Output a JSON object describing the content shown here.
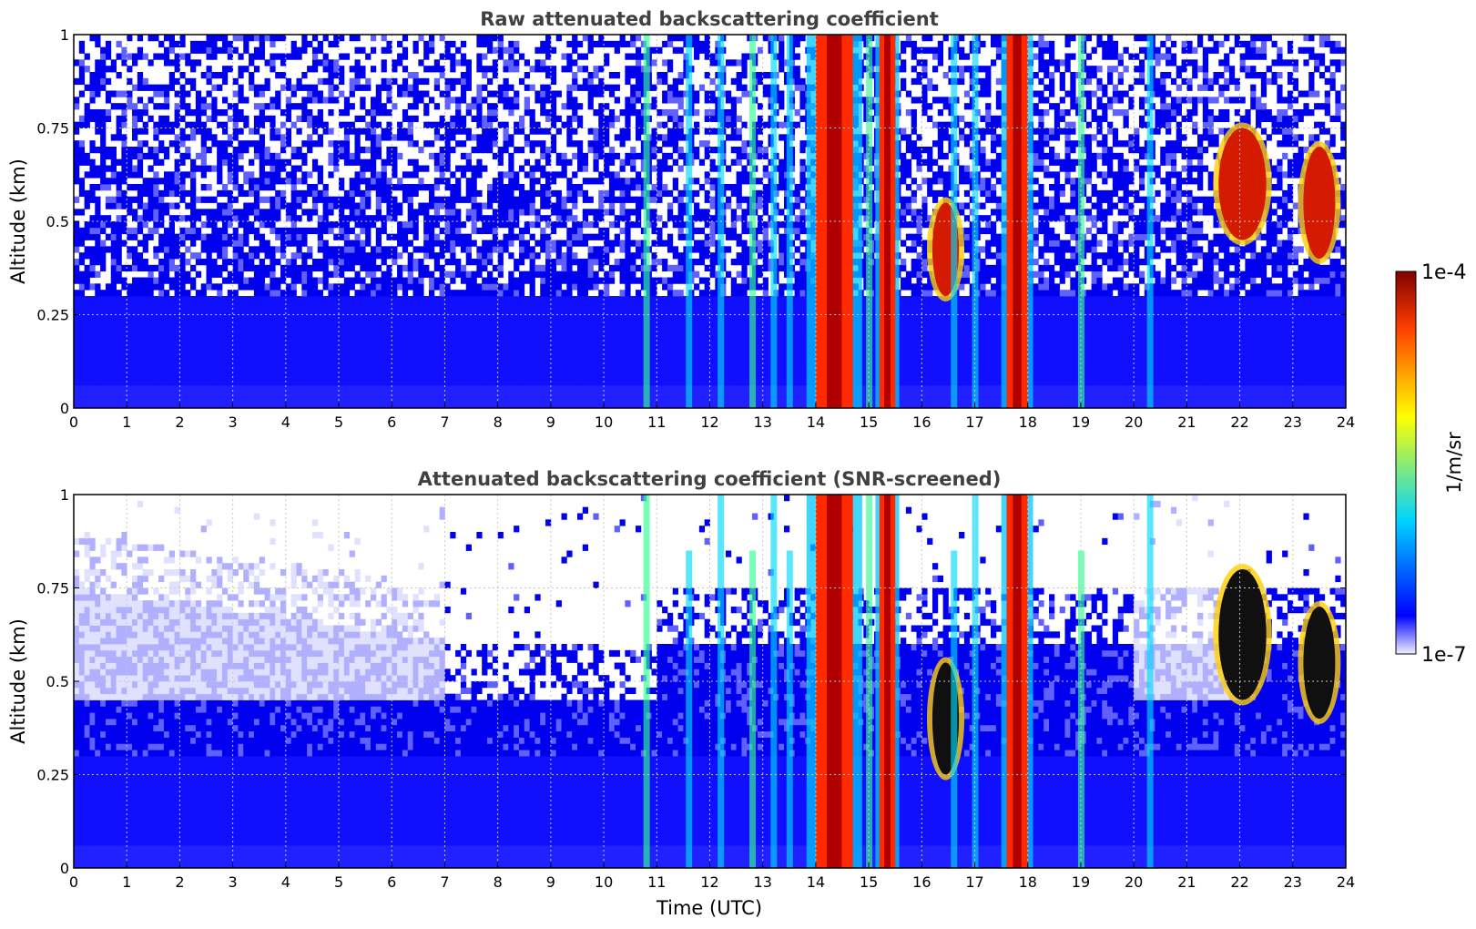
{
  "chart_data": [
    {
      "type": "heatmap",
      "title": "Raw attenuated backscattering coefficient",
      "xlabel": "",
      "ylabel": "Altitude (km)",
      "xlim": [
        0,
        24
      ],
      "ylim": [
        0,
        1
      ],
      "x_ticks": [
        "0",
        "1",
        "2",
        "3",
        "4",
        "5",
        "6",
        "7",
        "8",
        "9",
        "10",
        "11",
        "12",
        "13",
        "14",
        "15",
        "16",
        "17",
        "18",
        "19",
        "20",
        "21",
        "22",
        "23",
        "24"
      ],
      "y_ticks": [
        "0",
        "0.25",
        "0.5",
        "0.75",
        "1"
      ],
      "grid": true,
      "screened": false,
      "features": [
        {
          "name": "boundary-layer",
          "x": [
            0,
            24
          ],
          "y": [
            0,
            0.3
          ],
          "value": "1e-6"
        },
        {
          "name": "noise",
          "x": [
            0,
            24
          ],
          "y": [
            0.3,
            1
          ],
          "value": "1e-7"
        },
        {
          "name": "rain-band",
          "x": [
            14,
            14.7
          ],
          "y": [
            0,
            1
          ],
          "value": "1e-4"
        },
        {
          "name": "rain-band",
          "x": [
            15.2,
            15.5
          ],
          "y": [
            0,
            1
          ],
          "value": "1e-4"
        },
        {
          "name": "rain-band",
          "x": [
            17.6,
            18.0
          ],
          "y": [
            0,
            1
          ],
          "value": "1e-4"
        },
        {
          "name": "cloud",
          "x": [
            16.2,
            16.7
          ],
          "y": [
            0.3,
            0.55
          ],
          "value": "1e-4"
        },
        {
          "name": "cloud",
          "x": [
            21.6,
            22.5
          ],
          "y": [
            0.45,
            0.75
          ],
          "value": "1e-4"
        },
        {
          "name": "cloud",
          "x": [
            23.2,
            23.8
          ],
          "y": [
            0.4,
            0.7
          ],
          "value": "1e-4"
        }
      ]
    },
    {
      "type": "heatmap",
      "title": "Attenuated backscattering coefficient (SNR-screened)",
      "xlabel": "Time (UTC)",
      "ylabel": "Altitude (km)",
      "xlim": [
        0,
        24
      ],
      "ylim": [
        0,
        1
      ],
      "x_ticks": [
        "0",
        "1",
        "2",
        "3",
        "4",
        "5",
        "6",
        "7",
        "8",
        "9",
        "10",
        "11",
        "12",
        "13",
        "14",
        "15",
        "16",
        "17",
        "18",
        "19",
        "20",
        "21",
        "22",
        "23",
        "24"
      ],
      "y_ticks": [
        "0",
        "0.25",
        "0.5",
        "0.75",
        "1"
      ],
      "grid": true,
      "screened": true,
      "features": [
        {
          "name": "boundary-layer",
          "x": [
            0,
            24
          ],
          "y": [
            0,
            0.4
          ],
          "value": "1e-6"
        },
        {
          "name": "rain-band",
          "x": [
            14,
            14.7
          ],
          "y": [
            0,
            1
          ],
          "value": "1e-4"
        },
        {
          "name": "rain-band",
          "x": [
            15.2,
            15.5
          ],
          "y": [
            0,
            1
          ],
          "value": "1e-4"
        },
        {
          "name": "rain-band",
          "x": [
            17.6,
            18.0
          ],
          "y": [
            0,
            1
          ],
          "value": "1e-4"
        },
        {
          "name": "cloud",
          "x": [
            16.2,
            16.7
          ],
          "y": [
            0.25,
            0.55
          ],
          "value": "saturated"
        },
        {
          "name": "cloud",
          "x": [
            21.6,
            22.5
          ],
          "y": [
            0.45,
            0.8
          ],
          "value": "saturated"
        },
        {
          "name": "cloud",
          "x": [
            23.2,
            23.8
          ],
          "y": [
            0.4,
            0.7
          ],
          "value": "saturated"
        }
      ]
    }
  ],
  "colorbar": {
    "label": "1/m/sr",
    "max_label": "1e-4",
    "min_label": "1e-7",
    "scale": "log",
    "colormap": "jet",
    "colors": [
      "#f0f0ff",
      "#0000ff",
      "#00d4ff",
      "#ffff00",
      "#ff4000",
      "#800000"
    ]
  }
}
